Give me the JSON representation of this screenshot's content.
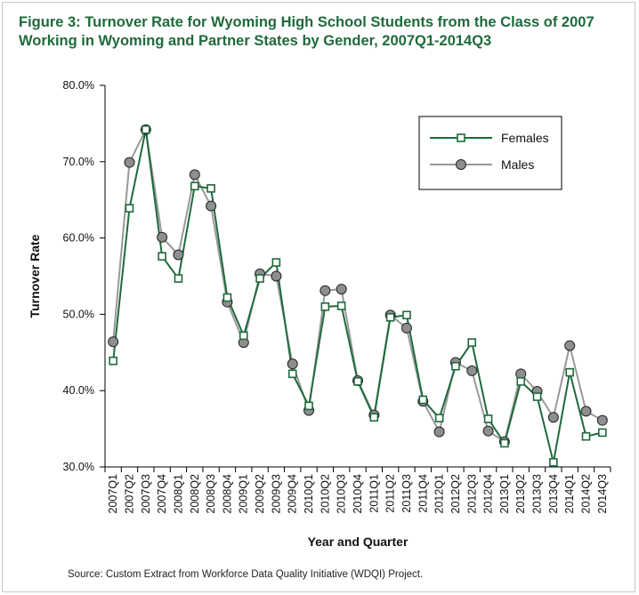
{
  "page": {
    "title_line1": "Figure 3: Turnover Rate for Wyoming High School Students from the Class of 2007",
    "title_line2": "Working in Wyoming and Partner States by Gender, 2007Q1-2014Q3",
    "source": "Source: Custom Extract from Workforce Data Quality Initiative (WDQI) Project."
  },
  "chart_data": {
    "type": "line",
    "title": "Figure 3: Turnover Rate for Wyoming High School Students from the Class of 2007 Working in Wyoming and Partner States by Gender, 2007Q1-2014Q3",
    "xlabel": "Year and Quarter",
    "ylabel": "Turnover Rate",
    "ylim": [
      30,
      80
    ],
    "yticks": [
      30,
      40,
      50,
      60,
      70,
      80
    ],
    "ytick_labels": [
      "30.0%",
      "40.0%",
      "50.0%",
      "60.0%",
      "70.0%",
      "80.0%"
    ],
    "grid": false,
    "legend_position": "top-right",
    "categories": [
      "2007Q1",
      "2007Q2",
      "2007Q3",
      "2007Q4",
      "2008Q1",
      "2008Q2",
      "2008Q3",
      "2008Q4",
      "2009Q1",
      "2009Q2",
      "2009Q3",
      "2009Q4",
      "2010Q1",
      "2010Q2",
      "2010Q3",
      "2010Q4",
      "2011Q1",
      "2011Q2",
      "2011Q3",
      "2011Q4",
      "2012Q1",
      "2012Q2",
      "2012Q3",
      "2012Q4",
      "2013Q1",
      "2013Q2",
      "2013Q3",
      "2013Q4",
      "2014Q1",
      "2014Q2",
      "2014Q3"
    ],
    "series": [
      {
        "name": "Females",
        "color": "#1f6a3c",
        "marker": "square",
        "values": [
          43.9,
          63.9,
          74.2,
          57.6,
          54.7,
          66.8,
          66.5,
          52.2,
          47.2,
          54.7,
          56.8,
          42.2,
          38.0,
          51.0,
          51.1,
          41.2,
          36.5,
          49.6,
          49.9,
          38.8,
          36.4,
          43.2,
          46.3,
          36.3,
          33.1,
          41.2,
          39.2,
          30.6,
          42.4,
          34.0,
          34.5
        ]
      },
      {
        "name": "Males",
        "color": "#999999",
        "marker": "circle",
        "values": [
          46.4,
          69.9,
          74.2,
          60.1,
          57.8,
          68.3,
          64.2,
          51.6,
          46.3,
          55.3,
          55.0,
          43.5,
          37.4,
          53.1,
          53.3,
          41.3,
          36.8,
          49.9,
          48.2,
          38.6,
          34.6,
          43.7,
          42.6,
          34.7,
          33.3,
          42.2,
          39.9,
          36.5,
          45.9,
          37.3,
          36.1
        ]
      }
    ]
  }
}
